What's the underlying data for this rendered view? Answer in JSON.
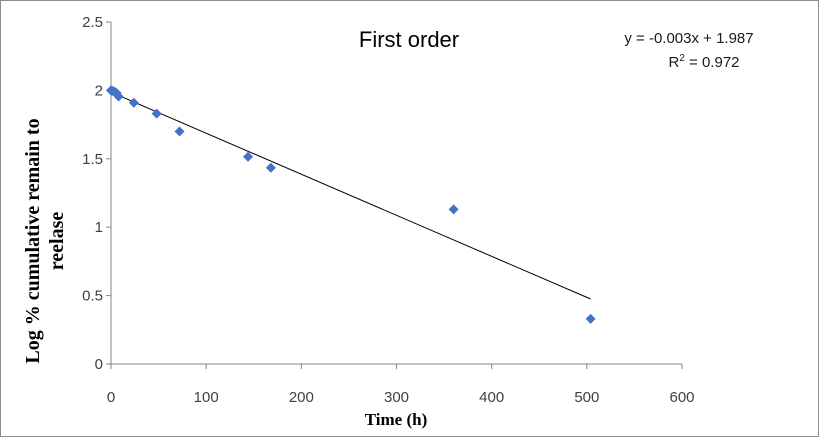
{
  "chart_data": {
    "type": "scatter",
    "title": "First order",
    "xlabel": "Time (h)",
    "ylabel_lines": [
      "Log % cumulative remain to",
      "reelase"
    ],
    "xlim": [
      0,
      600
    ],
    "ylim": [
      0,
      2.5
    ],
    "x_ticks": [
      0,
      100,
      200,
      300,
      400,
      500,
      600
    ],
    "y_ticks": [
      0,
      0.5,
      1,
      1.5,
      2,
      2.5
    ],
    "x_tick_labels": [
      "0",
      "100",
      "200",
      "300",
      "400",
      "500",
      "600"
    ],
    "y_tick_labels": [
      "0",
      "0.5",
      "1",
      "1.5",
      "2",
      "2.5"
    ],
    "grid": false,
    "marker_color": "#4472c4",
    "series": [
      {
        "marker": "diamond",
        "x": [
          0,
          1,
          2,
          4,
          6,
          8,
          24,
          48,
          72,
          144,
          168,
          360,
          504
        ],
        "y": [
          2.0,
          1.998,
          1.995,
          1.99,
          1.98,
          1.955,
          1.91,
          1.83,
          1.7,
          1.515,
          1.435,
          1.13,
          0.33
        ]
      }
    ],
    "trendline": {
      "slope": -0.003,
      "intercept": 1.987,
      "x_range": [
        0,
        504
      ],
      "color": "#000000",
      "equation_label": "y = -0.003x + 1.987",
      "r2_prefix": "R",
      "r2_sup": "2",
      "r2_suffix": " = 0.972"
    }
  }
}
